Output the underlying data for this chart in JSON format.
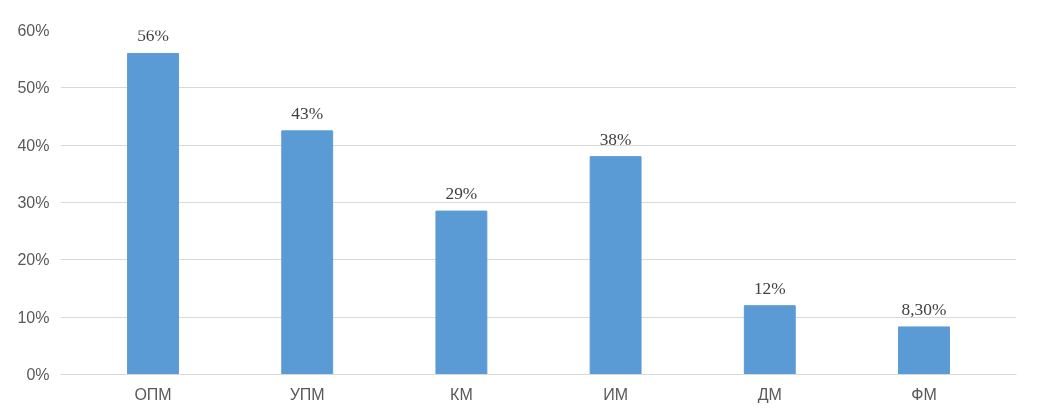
{
  "chart_data": {
    "type": "bar",
    "categories": [
      "ОПМ",
      "УПМ",
      "КМ",
      "ИМ",
      "ДМ",
      "ФМ"
    ],
    "values": [
      56,
      42.5,
      28.5,
      38,
      12,
      8.3
    ],
    "value_labels": [
      "56%",
      "43%",
      "29%",
      "38%",
      "12%",
      "8,30%"
    ],
    "color": "#5b9bd5",
    "ylim": [
      0,
      60
    ],
    "yticks": [
      {
        "value": 0,
        "label": "0%"
      },
      {
        "value": 10,
        "label": "10%"
      },
      {
        "value": 20,
        "label": "20%"
      },
      {
        "value": 30,
        "label": "30%"
      },
      {
        "value": 40,
        "label": "40%"
      },
      {
        "value": 50,
        "label": "50%"
      },
      {
        "value": 60,
        "label": "60%"
      }
    ],
    "grid": "y"
  }
}
